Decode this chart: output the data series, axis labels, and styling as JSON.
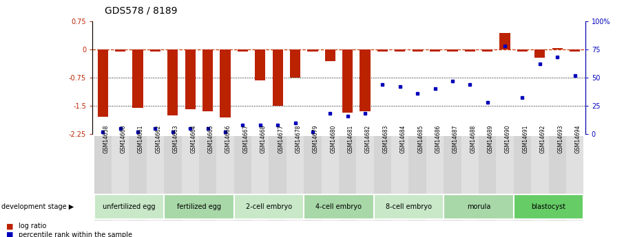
{
  "title": "GDS578 / 8189",
  "samples": [
    "GSM14658",
    "GSM14660",
    "GSM14661",
    "GSM14662",
    "GSM14663",
    "GSM14664",
    "GSM14665",
    "GSM14666",
    "GSM14667",
    "GSM14668",
    "GSM14677",
    "GSM14678",
    "GSM14679",
    "GSM14680",
    "GSM14681",
    "GSM14682",
    "GSM14683",
    "GSM14684",
    "GSM14685",
    "GSM14686",
    "GSM14687",
    "GSM14688",
    "GSM14689",
    "GSM14690",
    "GSM14691",
    "GSM14692",
    "GSM14693",
    "GSM14694"
  ],
  "log_ratio": [
    -1.8,
    -0.05,
    -1.55,
    -0.05,
    -1.75,
    -1.6,
    -1.65,
    -1.82,
    -0.05,
    -0.82,
    -1.5,
    -0.75,
    -0.05,
    -0.32,
    -1.68,
    -1.65,
    -0.05,
    -0.05,
    -0.05,
    -0.05,
    -0.05,
    -0.05,
    -0.05,
    0.44,
    -0.05,
    -0.22,
    0.04,
    -0.05
  ],
  "percentile": [
    2,
    5,
    2,
    5,
    2,
    5,
    5,
    2,
    8,
    8,
    8,
    10,
    2,
    18,
    16,
    18,
    44,
    42,
    36,
    40,
    47,
    44,
    28,
    78,
    32,
    62,
    68,
    52
  ],
  "stages": [
    {
      "label": "unfertilized egg",
      "start": 0,
      "end": 4,
      "color": "#c8e8c8"
    },
    {
      "label": "fertilized egg",
      "start": 4,
      "end": 8,
      "color": "#a8d8a8"
    },
    {
      "label": "2-cell embryo",
      "start": 8,
      "end": 12,
      "color": "#c8e8c8"
    },
    {
      "label": "4-cell embryo",
      "start": 12,
      "end": 16,
      "color": "#a8d8a8"
    },
    {
      "label": "8-cell embryo",
      "start": 16,
      "end": 20,
      "color": "#c8e8c8"
    },
    {
      "label": "morula",
      "start": 20,
      "end": 24,
      "color": "#a8d8a8"
    },
    {
      "label": "blastocyst",
      "start": 24,
      "end": 28,
      "color": "#66cc66"
    }
  ],
  "ylim_left": [
    -2.25,
    0.75
  ],
  "ylim_right": [
    0,
    100
  ],
  "yticks_left": [
    0.75,
    0,
    -0.75,
    -1.5,
    -2.25
  ],
  "yticks_right": [
    100,
    75,
    50,
    25,
    0
  ],
  "bar_color": "#bb2200",
  "scatter_color": "#0000bb",
  "hline_color": "#cc3300",
  "bg_color": "#ffffff",
  "title_fontsize": 10,
  "tick_fontsize": 7,
  "sample_fontsize": 5.5,
  "stage_fontsize": 7
}
